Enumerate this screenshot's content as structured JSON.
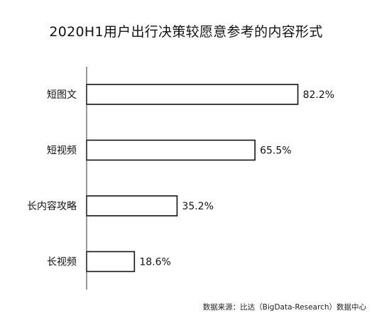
{
  "chart_data": {
    "type": "bar",
    "orientation": "horizontal",
    "title": "2020H1用户出行决策较愿意参考的内容形式",
    "categories": [
      "短图文",
      "短视频",
      "长内容攻略",
      "长视频"
    ],
    "values": [
      82.2,
      65.5,
      35.2,
      18.6
    ],
    "value_labels": [
      "82.2%",
      "65.5%",
      "35.2%",
      "18.6%"
    ],
    "unit": "%",
    "xlim": [
      0,
      100
    ],
    "grid": false,
    "legend": "none",
    "bar_fill": "#ffffff",
    "bar_stroke": "#111111"
  },
  "source": "数据来源：比达（BigData-Research）数据中心"
}
